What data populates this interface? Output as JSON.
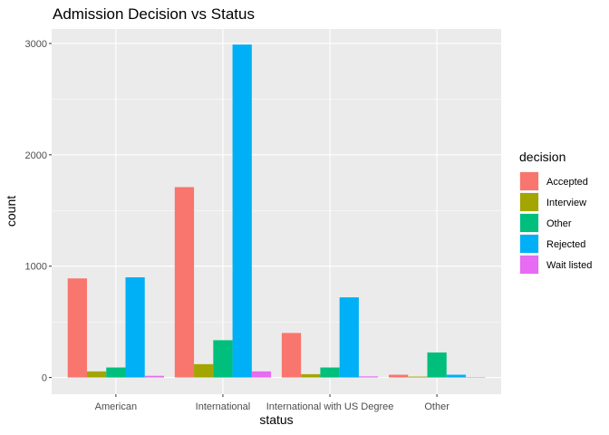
{
  "chart_data": {
    "type": "bar",
    "title": "Admission Decision vs Status",
    "xlabel": "status",
    "ylabel": "count",
    "categories": [
      "American",
      "International",
      "International with US Degree",
      "Other"
    ],
    "ylim": [
      -150,
      3130
    ],
    "yticks": [
      0,
      1000,
      2000,
      3000
    ],
    "grid": true,
    "legend_position": "right",
    "legend_title": "decision",
    "series": [
      {
        "name": "Accepted",
        "color": "#F8766D",
        "values": [
          890,
          1710,
          400,
          25
        ]
      },
      {
        "name": "Interview",
        "color": "#A3A500",
        "values": [
          55,
          120,
          30,
          8
        ]
      },
      {
        "name": "Other",
        "color": "#00BF7D",
        "values": [
          90,
          335,
          90,
          225
        ]
      },
      {
        "name": "Rejected",
        "color": "#00B0F6",
        "values": [
          900,
          2990,
          720,
          25
        ]
      },
      {
        "name": "Wait listed",
        "color": "#E76BF3",
        "values": [
          15,
          55,
          10,
          3
        ]
      }
    ]
  }
}
